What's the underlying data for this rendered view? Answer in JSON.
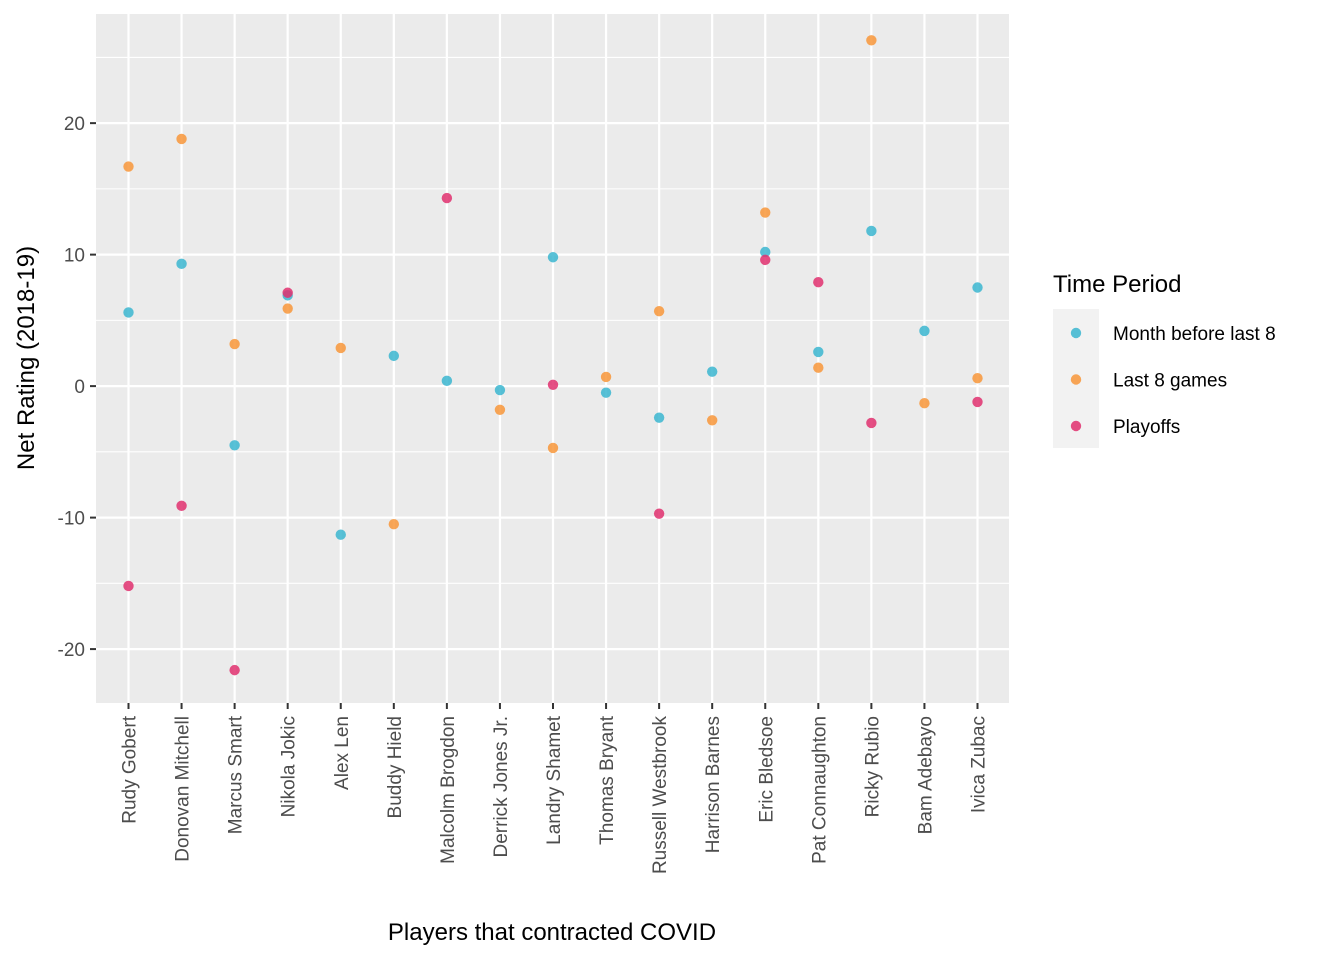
{
  "chart_data": {
    "type": "scatter",
    "xlabel": "Players that contracted COVID",
    "ylabel": "Net Rating (2018-19)",
    "ylim": [
      -24.1,
      28.3
    ],
    "yticks": [
      -20,
      -10,
      0,
      10,
      20
    ],
    "grid": true,
    "legend_position": "right",
    "legend_title": "Time Period",
    "categories": [
      "Rudy Gobert",
      "Donovan Mitchell",
      "Marcus Smart",
      "Nikola Jokic",
      "Alex Len",
      "Buddy Hield",
      "Malcolm Brogdon",
      "Derrick Jones Jr.",
      "Landry Shamet",
      "Thomas Bryant",
      "Russell Westbrook",
      "Harrison Barnes",
      "Eric Bledsoe",
      "Pat Connaughton",
      "Ricky Rubio",
      "Bam Adebayo",
      "Ivica Zubac"
    ],
    "series": [
      {
        "name": "Month before last 8",
        "color": "#3bb6d0",
        "values": [
          5.6,
          9.3,
          -4.5,
          6.9,
          -11.3,
          2.3,
          0.4,
          -0.3,
          9.8,
          -0.5,
          -2.4,
          1.1,
          10.2,
          2.6,
          11.8,
          4.2,
          7.5
        ]
      },
      {
        "name": "Last 8 games",
        "color": "#f8963a",
        "values": [
          16.7,
          18.8,
          3.2,
          5.9,
          2.9,
          -10.5,
          null,
          -1.8,
          -4.7,
          0.7,
          5.7,
          -2.6,
          13.2,
          1.4,
          26.3,
          -1.3,
          0.6
        ]
      },
      {
        "name": "Playoffs",
        "color": "#e0306f",
        "values": [
          -15.2,
          -9.1,
          -21.6,
          7.1,
          null,
          null,
          14.3,
          null,
          0.1,
          null,
          -9.7,
          null,
          9.6,
          7.9,
          -2.8,
          null,
          -1.2
        ]
      }
    ]
  }
}
